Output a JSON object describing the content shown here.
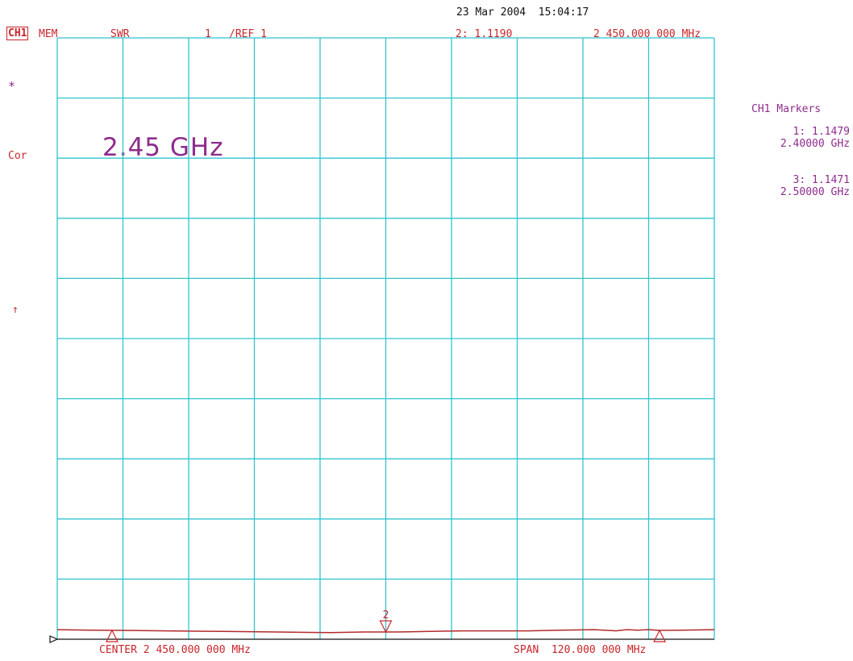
{
  "header": {
    "channel": "CH1",
    "mem": "MEM",
    "format": "SWR",
    "scale": "1",
    "ref": "/REF 1",
    "timestamp": "23 Mar 2004  15:04:17",
    "active_marker_readout": "2: 1.1190",
    "active_marker_freq": "2 450.000 000 MHz"
  },
  "left_annotations": {
    "star": "*",
    "cor": "Cor",
    "ref_arrow": "↑"
  },
  "overlay_label": "2.45 GHz",
  "markers_panel": {
    "title": "CH1 Markers",
    "m1_value": "1: 1.1479",
    "m1_freq": "2.40000 GHz",
    "m3_value": "3: 1.1471",
    "m3_freq": "2.50000 GHz"
  },
  "footer": {
    "center": "CENTER 2 450.000 000 MHz",
    "span": "SPAN  120.000 000 MHz"
  },
  "colors": {
    "grid": "#31c4d0",
    "trace": "#b32a2c",
    "annotation_red": "#c8262b",
    "annotation_purple": "#8e2c8c",
    "marker_outline": "#c8262b"
  },
  "chart_data": {
    "type": "line",
    "title": "",
    "xlabel": "",
    "ylabel": "",
    "x_units": "MHz",
    "xlim": [
      2390,
      2510
    ],
    "ylim": [
      1,
      11
    ],
    "grid": true,
    "x_divisions": 10,
    "y_divisions": 10,
    "series": [
      {
        "x": [
          2390,
          2396,
          2402,
          2410,
          2420,
          2430,
          2440,
          2446,
          2452,
          2458,
          2464,
          2470,
          2476,
          2482,
          2488,
          2492,
          2494,
          2496,
          2498,
          2500,
          2504,
          2510
        ],
        "values": [
          1.16,
          1.15,
          1.148,
          1.14,
          1.13,
          1.12,
          1.11,
          1.12,
          1.12,
          1.13,
          1.14,
          1.14,
          1.14,
          1.15,
          1.16,
          1.14,
          1.16,
          1.15,
          1.16,
          1.147,
          1.15,
          1.16
        ]
      }
    ],
    "markers": [
      {
        "label": "1",
        "x": 2400,
        "y": 1.1479,
        "pointer": "up"
      },
      {
        "label": "2",
        "x": 2450,
        "y": 1.119,
        "pointer": "down"
      },
      {
        "label": "3",
        "x": 2500,
        "y": 1.1471,
        "pointer": "up"
      }
    ]
  }
}
